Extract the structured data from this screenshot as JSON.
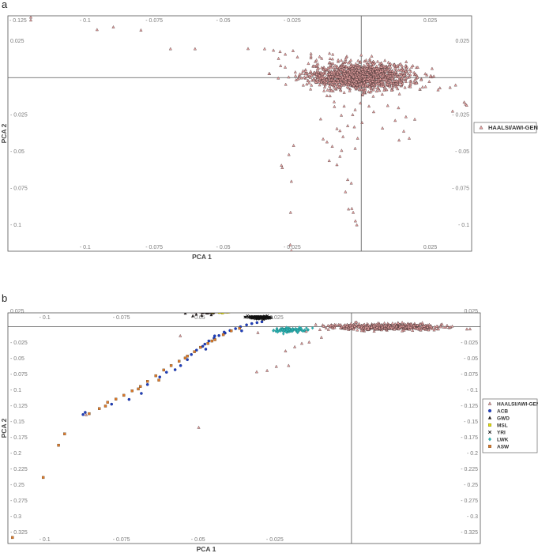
{
  "panels": {
    "a": {
      "letter": "a"
    },
    "b": {
      "letter": "b"
    }
  },
  "colors": {
    "haalsi": "#e8a3a3",
    "haalsi_stroke": "#3a2a2a",
    "acb": "#1f3fbf",
    "gwd": "#222222",
    "msl": "#e6e600",
    "yri": "#111111",
    "lwk": "#2bb5b5",
    "asw": "#e07a2a",
    "frame": "#555555"
  },
  "chart_data": [
    {
      "type": "scatter",
      "panel": "a",
      "xlabel": "PCA 1",
      "ylabel": "PCA 2",
      "xlim": [
        -0.128,
        0.04
      ],
      "ylim": [
        -0.118,
        0.042
      ],
      "x_ticks": [
        "- 0.1",
        "- 0.075",
        "- 0.05",
        "- 0.025",
        "0.025"
      ],
      "x_tick_values": [
        -0.1,
        -0.075,
        -0.05,
        -0.025,
        0.025
      ],
      "y_ticks": [
        "0.025",
        "- 0.025",
        "- 0.05",
        "- 0.075",
        "- 0.1"
      ],
      "y_tick_values": [
        0.025,
        -0.025,
        -0.05,
        -0.075,
        -0.1
      ],
      "corner_label": "- 0.125",
      "grid": false,
      "reference_lines": {
        "x": 0,
        "y": 0
      },
      "legend": {
        "placement": "right",
        "entries": [
          "HAALSI/AWI-GEN"
        ]
      },
      "series": [
        {
          "name": "HAALSI/AWI-GEN",
          "marker": "triangle",
          "cluster": {
            "center": [
              0,
              0.001
            ],
            "spread": [
              0.0095,
              0.0045
            ],
            "count": 1400
          },
          "points": [
            [
              -0.1197,
              0.041
            ],
            [
              -0.1197,
              0.039
            ],
            [
              -0.0957,
              0.0325
            ],
            [
              -0.0898,
              0.0343
            ],
            [
              -0.0798,
              0.0322
            ],
            [
              -0.0691,
              0.0195
            ],
            [
              -0.0602,
              0.0195
            ],
            [
              -0.041,
              0.0196
            ],
            [
              -0.035,
              0.0195
            ],
            [
              -0.0318,
              0.0185
            ],
            [
              -0.0294,
              0.0176
            ],
            [
              -0.0275,
              0.0158
            ],
            [
              -0.0247,
              0.0182
            ],
            [
              -0.0231,
              0.0139
            ],
            [
              -0.0182,
              0.0162
            ],
            [
              -0.0182,
              0.0145
            ],
            [
              -0.0143,
              0.013
            ],
            [
              -0.0115,
              0.0164
            ],
            [
              -0.0104,
              0.0126
            ],
            [
              -0.0072,
              0.0116
            ],
            [
              -0.0057,
              0.0123
            ],
            [
              -0.0214,
              0.0028
            ],
            [
              -0.0183,
              0.0042
            ],
            [
              -0.0162,
              0.0021
            ],
            [
              -0.0149,
              -0.0007
            ],
            [
              -0.0135,
              -0.0045
            ],
            [
              -0.0122,
              -0.0085
            ],
            [
              -0.0113,
              -0.0125
            ],
            [
              -0.0292,
              0.008
            ],
            [
              -0.0334,
              0.0026
            ],
            [
              -0.0098,
              -0.0165
            ],
            [
              -0.0097,
              -0.0198
            ],
            [
              -0.0062,
              -0.0195
            ],
            [
              -0.0022,
              -0.0219
            ],
            [
              -0.0003,
              -0.0174
            ],
            [
              0.0028,
              -0.0195
            ],
            [
              0.0096,
              -0.0191
            ],
            [
              0.0135,
              -0.0206
            ],
            [
              0.0123,
              -0.0292
            ],
            [
              0.0154,
              -0.0365
            ],
            [
              0.0174,
              -0.0413
            ],
            [
              0.0162,
              -0.0267
            ],
            [
              0.0194,
              -0.0284
            ],
            [
              0.0045,
              -0.0233
            ],
            [
              -0.0147,
              -0.0282
            ],
            [
              -0.0088,
              -0.0348
            ],
            [
              -0.0066,
              -0.0402
            ],
            [
              -0.0124,
              -0.0438
            ],
            [
              -0.0138,
              -0.0418
            ],
            [
              -0.0105,
              -0.0468
            ],
            [
              -0.0071,
              -0.0496
            ],
            [
              -0.0077,
              -0.0536
            ],
            [
              -0.0088,
              -0.0593
            ],
            [
              -0.0116,
              -0.0565
            ],
            [
              -0.0077,
              -0.0362
            ],
            [
              -0.0049,
              -0.0328
            ],
            [
              -0.0025,
              -0.0336
            ],
            [
              0.0003,
              -0.0307
            ],
            [
              -0.0022,
              -0.0482
            ],
            [
              -0.0013,
              -0.0413
            ],
            [
              -0.0072,
              -0.0257
            ],
            [
              -0.0031,
              -0.0253
            ],
            [
              -0.0245,
              -0.0462
            ],
            [
              -0.0289,
              -0.0597
            ],
            [
              -0.0286,
              -0.0613
            ],
            [
              -0.0262,
              -0.0524
            ],
            [
              -0.0253,
              -0.0706
            ],
            [
              -0.0256,
              -0.0917
            ],
            [
              -0.0049,
              -0.0694
            ],
            [
              -0.0057,
              -0.0777
            ],
            [
              -0.0036,
              -0.0718
            ],
            [
              -0.0034,
              -0.0891
            ],
            [
              -0.0046,
              -0.0894
            ],
            [
              -0.0029,
              -0.0917
            ],
            [
              -0.0021,
              -0.0975
            ],
            [
              -0.0016,
              -0.1002
            ],
            [
              0.0137,
              -0.0426
            ],
            [
              0.0077,
              -0.0344
            ],
            [
              0.0373,
              -0.0168
            ],
            [
              0.0378,
              -0.0181
            ],
            [
              0.0382,
              -0.0189
            ],
            [
              0.0331,
              -0.0229
            ],
            [
              -0.0257,
              -0.1137
            ],
            [
              -0.0253,
              -0.1176
            ],
            [
              0.0005,
              -0.0112
            ]
          ]
        }
      ]
    },
    {
      "type": "scatter",
      "panel": "b",
      "xlabel": "PCA 1",
      "ylabel": "PCA 2",
      "xlim": [
        -0.112,
        0.042
      ],
      "ylim": [
        -0.343,
        0.022
      ],
      "x_ticks": [
        "- 0.1",
        "- 0.075",
        "- 0.05",
        "- 0.025"
      ],
      "x_tick_values": [
        -0.1,
        -0.075,
        -0.05,
        -0.025
      ],
      "y_ticks": [
        "0.025",
        "- 0.025",
        "- 0.05",
        "- 0.075",
        "- 0.1",
        "- 0.125",
        "- 0.15",
        "- 0.175",
        "- 0.2",
        "- 0.225",
        "- 0.25",
        "- 0.275",
        "- 0.3",
        "- 0.325"
      ],
      "y_tick_values": [
        0.025,
        -0.025,
        -0.05,
        -0.075,
        -0.1,
        -0.125,
        -0.15,
        -0.175,
        -0.2,
        -0.225,
        -0.25,
        -0.275,
        -0.3,
        -0.325
      ],
      "grid": false,
      "reference_lines": {
        "x": 0,
        "y": 0
      },
      "legend": {
        "placement": "right",
        "entries": [
          "HAALSI/AWI-GEN",
          "ACB",
          "GWD",
          "MSL",
          "YRI",
          "LWK",
          "ASW"
        ]
      },
      "series": [
        {
          "name": "HAALSI/AWI-GEN",
          "marker": "triangle",
          "cluster": {
            "center": [
              0.012,
              0.0
            ],
            "spread": [
              0.0085,
              0.0025
            ],
            "count": 500
          },
          "points": [
            [
              -0.0015,
              0.0005
            ],
            [
              -0.0055,
              -0.0015
            ],
            [
              -0.0075,
              -0.0045
            ],
            [
              -0.0098,
              -0.017
            ],
            [
              -0.0138,
              -0.0245
            ],
            [
              -0.0162,
              -0.0265
            ],
            [
              -0.0185,
              -0.032
            ],
            [
              -0.0215,
              -0.0385
            ],
            [
              -0.0205,
              -0.0615
            ],
            [
              -0.0245,
              -0.063
            ],
            [
              -0.0275,
              -0.0695
            ],
            [
              -0.0309,
              -0.0715
            ],
            [
              -0.0558,
              -0.0145
            ],
            [
              -0.0305,
              -0.0095
            ],
            [
              -0.0498,
              -0.1595
            ],
            [
              -0.0865,
              -0.1395
            ],
            [
              -0.0148,
              -0.0075
            ]
          ]
        },
        {
          "name": "ACB",
          "marker": "circle",
          "points": [
            [
              -0.0485,
              -0.031
            ],
            [
              -0.0505,
              -0.037
            ],
            [
              -0.0522,
              -0.044
            ],
            [
              -0.0535,
              -0.052
            ],
            [
              -0.0465,
              -0.0225
            ],
            [
              -0.0448,
              -0.018
            ],
            [
              -0.0432,
              -0.014
            ],
            [
              -0.0412,
              -0.01
            ],
            [
              -0.0396,
              -0.006
            ],
            [
              -0.0378,
              -0.003
            ],
            [
              -0.0362,
              0.0
            ],
            [
              -0.0342,
              0.003
            ],
            [
              -0.0325,
              0.005
            ],
            [
              -0.0308,
              0.0065
            ],
            [
              -0.0292,
              0.0078
            ],
            [
              -0.0557,
              -0.0615
            ],
            [
              -0.0575,
              -0.068
            ],
            [
              -0.0603,
              -0.072
            ],
            [
              -0.0625,
              -0.0795
            ],
            [
              -0.0665,
              -0.0915
            ],
            [
              -0.0685,
              -0.1055
            ],
            [
              -0.0725,
              -0.115
            ],
            [
              -0.0782,
              -0.1225
            ],
            [
              -0.0868,
              -0.1355
            ],
            [
              -0.0875,
              -0.139
            ],
            [
              -0.0478,
              -0.0275
            ],
            [
              -0.0415,
              -0.0085
            ],
            [
              -0.0475,
              -0.0355
            ],
            [
              -0.0446,
              -0.0145
            ],
            [
              -0.0358,
              -0.0065
            ]
          ]
        },
        {
          "name": "GWD",
          "marker": "triangle",
          "cluster": {
            "center": [
              -0.0479,
              0.0253
            ],
            "spread": [
              0.0022,
              0.0022
            ],
            "count": 110
          },
          "points": [
            [
              -0.0488,
              0.0175
            ],
            [
              -0.0506,
              0.0195
            ]
          ]
        },
        {
          "name": "MSL",
          "marker": "square",
          "cluster": {
            "center": [
              -0.0429,
              0.0249
            ],
            "spread": [
              0.0018,
              0.0011
            ],
            "count": 90
          },
          "points": []
        },
        {
          "name": "YRI",
          "marker": "cross",
          "cluster": {
            "center": [
              -0.0301,
              0.0148
            ],
            "spread": [
              0.0019,
              0.0011
            ],
            "count": 100
          },
          "points": []
        },
        {
          "name": "LWK",
          "marker": "diamond",
          "cluster": {
            "center": [
              -0.0203,
              -0.0052
            ],
            "spread": [
              0.0028,
              0.0018
            ],
            "count": 100
          },
          "points": [
            [
              -0.0127,
              -0.002
            ],
            [
              -0.0222,
              -0.0112
            ]
          ]
        },
        {
          "name": "ASW",
          "marker": "square",
          "points": [
            [
              -0.0365,
              -0.0025
            ],
            [
              -0.0392,
              -0.0065
            ],
            [
              -0.0418,
              -0.0125
            ],
            [
              -0.0445,
              -0.0205
            ],
            [
              -0.0468,
              -0.0265
            ],
            [
              -0.0492,
              -0.0325
            ],
            [
              -0.0512,
              -0.0395
            ],
            [
              -0.0535,
              -0.0465
            ],
            [
              -0.0562,
              -0.0545
            ],
            [
              -0.0588,
              -0.0615
            ],
            [
              -0.0612,
              -0.0685
            ],
            [
              -0.0638,
              -0.0775
            ],
            [
              -0.0665,
              -0.0865
            ],
            [
              -0.0688,
              -0.0945
            ],
            [
              -0.0715,
              -0.1015
            ],
            [
              -0.0742,
              -0.1085
            ],
            [
              -0.0768,
              -0.1145
            ],
            [
              -0.0795,
              -0.1195
            ],
            [
              -0.0802,
              -0.1255
            ],
            [
              -0.0822,
              -0.1295
            ],
            [
              -0.0855,
              -0.1375
            ],
            [
              -0.0935,
              -0.1695
            ],
            [
              -0.0955,
              -0.1875
            ],
            [
              -0.1005,
              -0.2385
            ],
            [
              -0.1105,
              -0.3335
            ],
            [
              -0.0628,
              -0.0845
            ],
            [
              -0.0695,
              -0.0985
            ],
            [
              -0.0542,
              -0.0495
            ],
            [
              -0.0455,
              -0.0225
            ]
          ]
        }
      ]
    }
  ]
}
